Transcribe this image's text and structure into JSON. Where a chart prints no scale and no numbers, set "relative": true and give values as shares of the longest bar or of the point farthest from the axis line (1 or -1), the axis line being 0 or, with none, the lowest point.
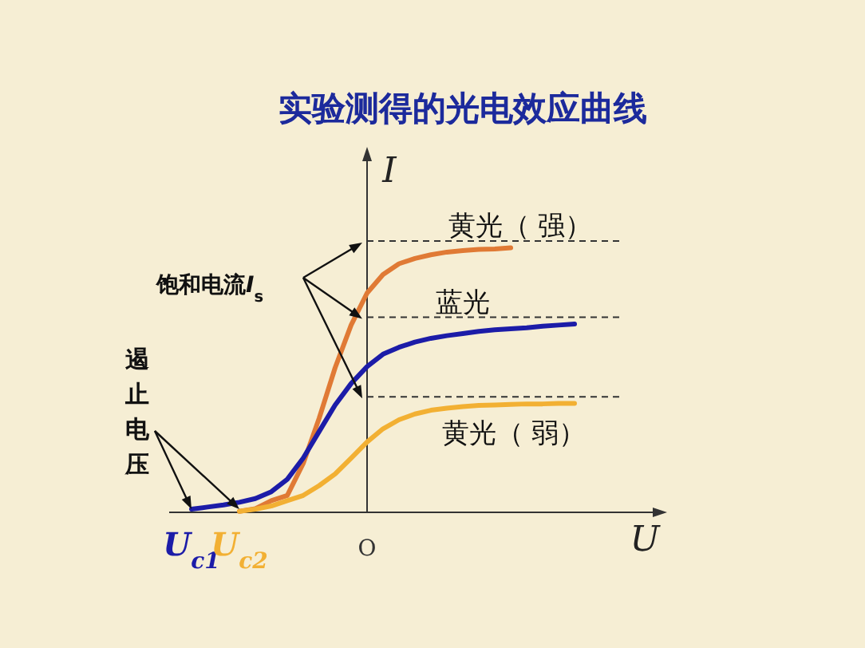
{
  "chart_data": {
    "type": "line",
    "title": "实验测得的光电效应曲线",
    "xlabel": "U",
    "ylabel": "I",
    "relative": true,
    "categories": [
      "U$_{c1}$",
      null,
      null,
      "U$_{c2}$",
      null,
      null,
      null,
      null,
      null,
      null,
      null,
      "O",
      null,
      null,
      null,
      null,
      null,
      null,
      null,
      null,
      null,
      null,
      null,
      null,
      null,
      null,
      null,
      null
    ],
    "series": [
      {
        "name": "黄光（ 强）",
        "color": "#e07a35",
        "values": [
          null,
          null,
          null,
          0.004,
          0.014,
          0.044,
          0.064,
          0.185,
          0.356,
          0.547,
          0.708,
          0.829,
          0.899,
          0.94,
          0.96,
          0.974,
          0.984,
          0.99,
          0.994,
          0.996,
          1.0,
          null,
          null,
          null,
          null,
          null,
          null,
          null
        ]
      },
      {
        "name": "蓝光",
        "color": "#1c1ca8",
        "values": [
          0.012,
          0.02,
          0.028,
          0.038,
          0.052,
          0.078,
          0.125,
          0.205,
          0.306,
          0.406,
          0.487,
          0.551,
          0.598,
          0.624,
          0.644,
          0.658,
          0.668,
          0.676,
          0.684,
          0.69,
          0.694,
          0.698,
          0.704,
          0.708,
          0.712,
          null,
          null,
          null
        ]
      },
      {
        "name": "黄光（ 弱）",
        "color": "#f2b033",
        "values": [
          null,
          null,
          null,
          0.004,
          0.012,
          0.024,
          0.044,
          0.064,
          0.101,
          0.145,
          0.205,
          0.266,
          0.316,
          0.35,
          0.372,
          0.386,
          0.394,
          0.4,
          0.404,
          0.406,
          0.408,
          0.41,
          0.41,
          0.412,
          0.412,
          null,
          null,
          null
        ]
      }
    ],
    "ref_lines": [
      {
        "axis": "y",
        "value": 1.026,
        "line_style": "dashed"
      },
      {
        "axis": "y",
        "value": 0.738,
        "line_style": "dashed"
      },
      {
        "axis": "y",
        "value": 0.437,
        "line_style": "dashed"
      }
    ],
    "annotations": [
      "饱和电流I$_{s}$",
      "遏止电压"
    ]
  }
}
